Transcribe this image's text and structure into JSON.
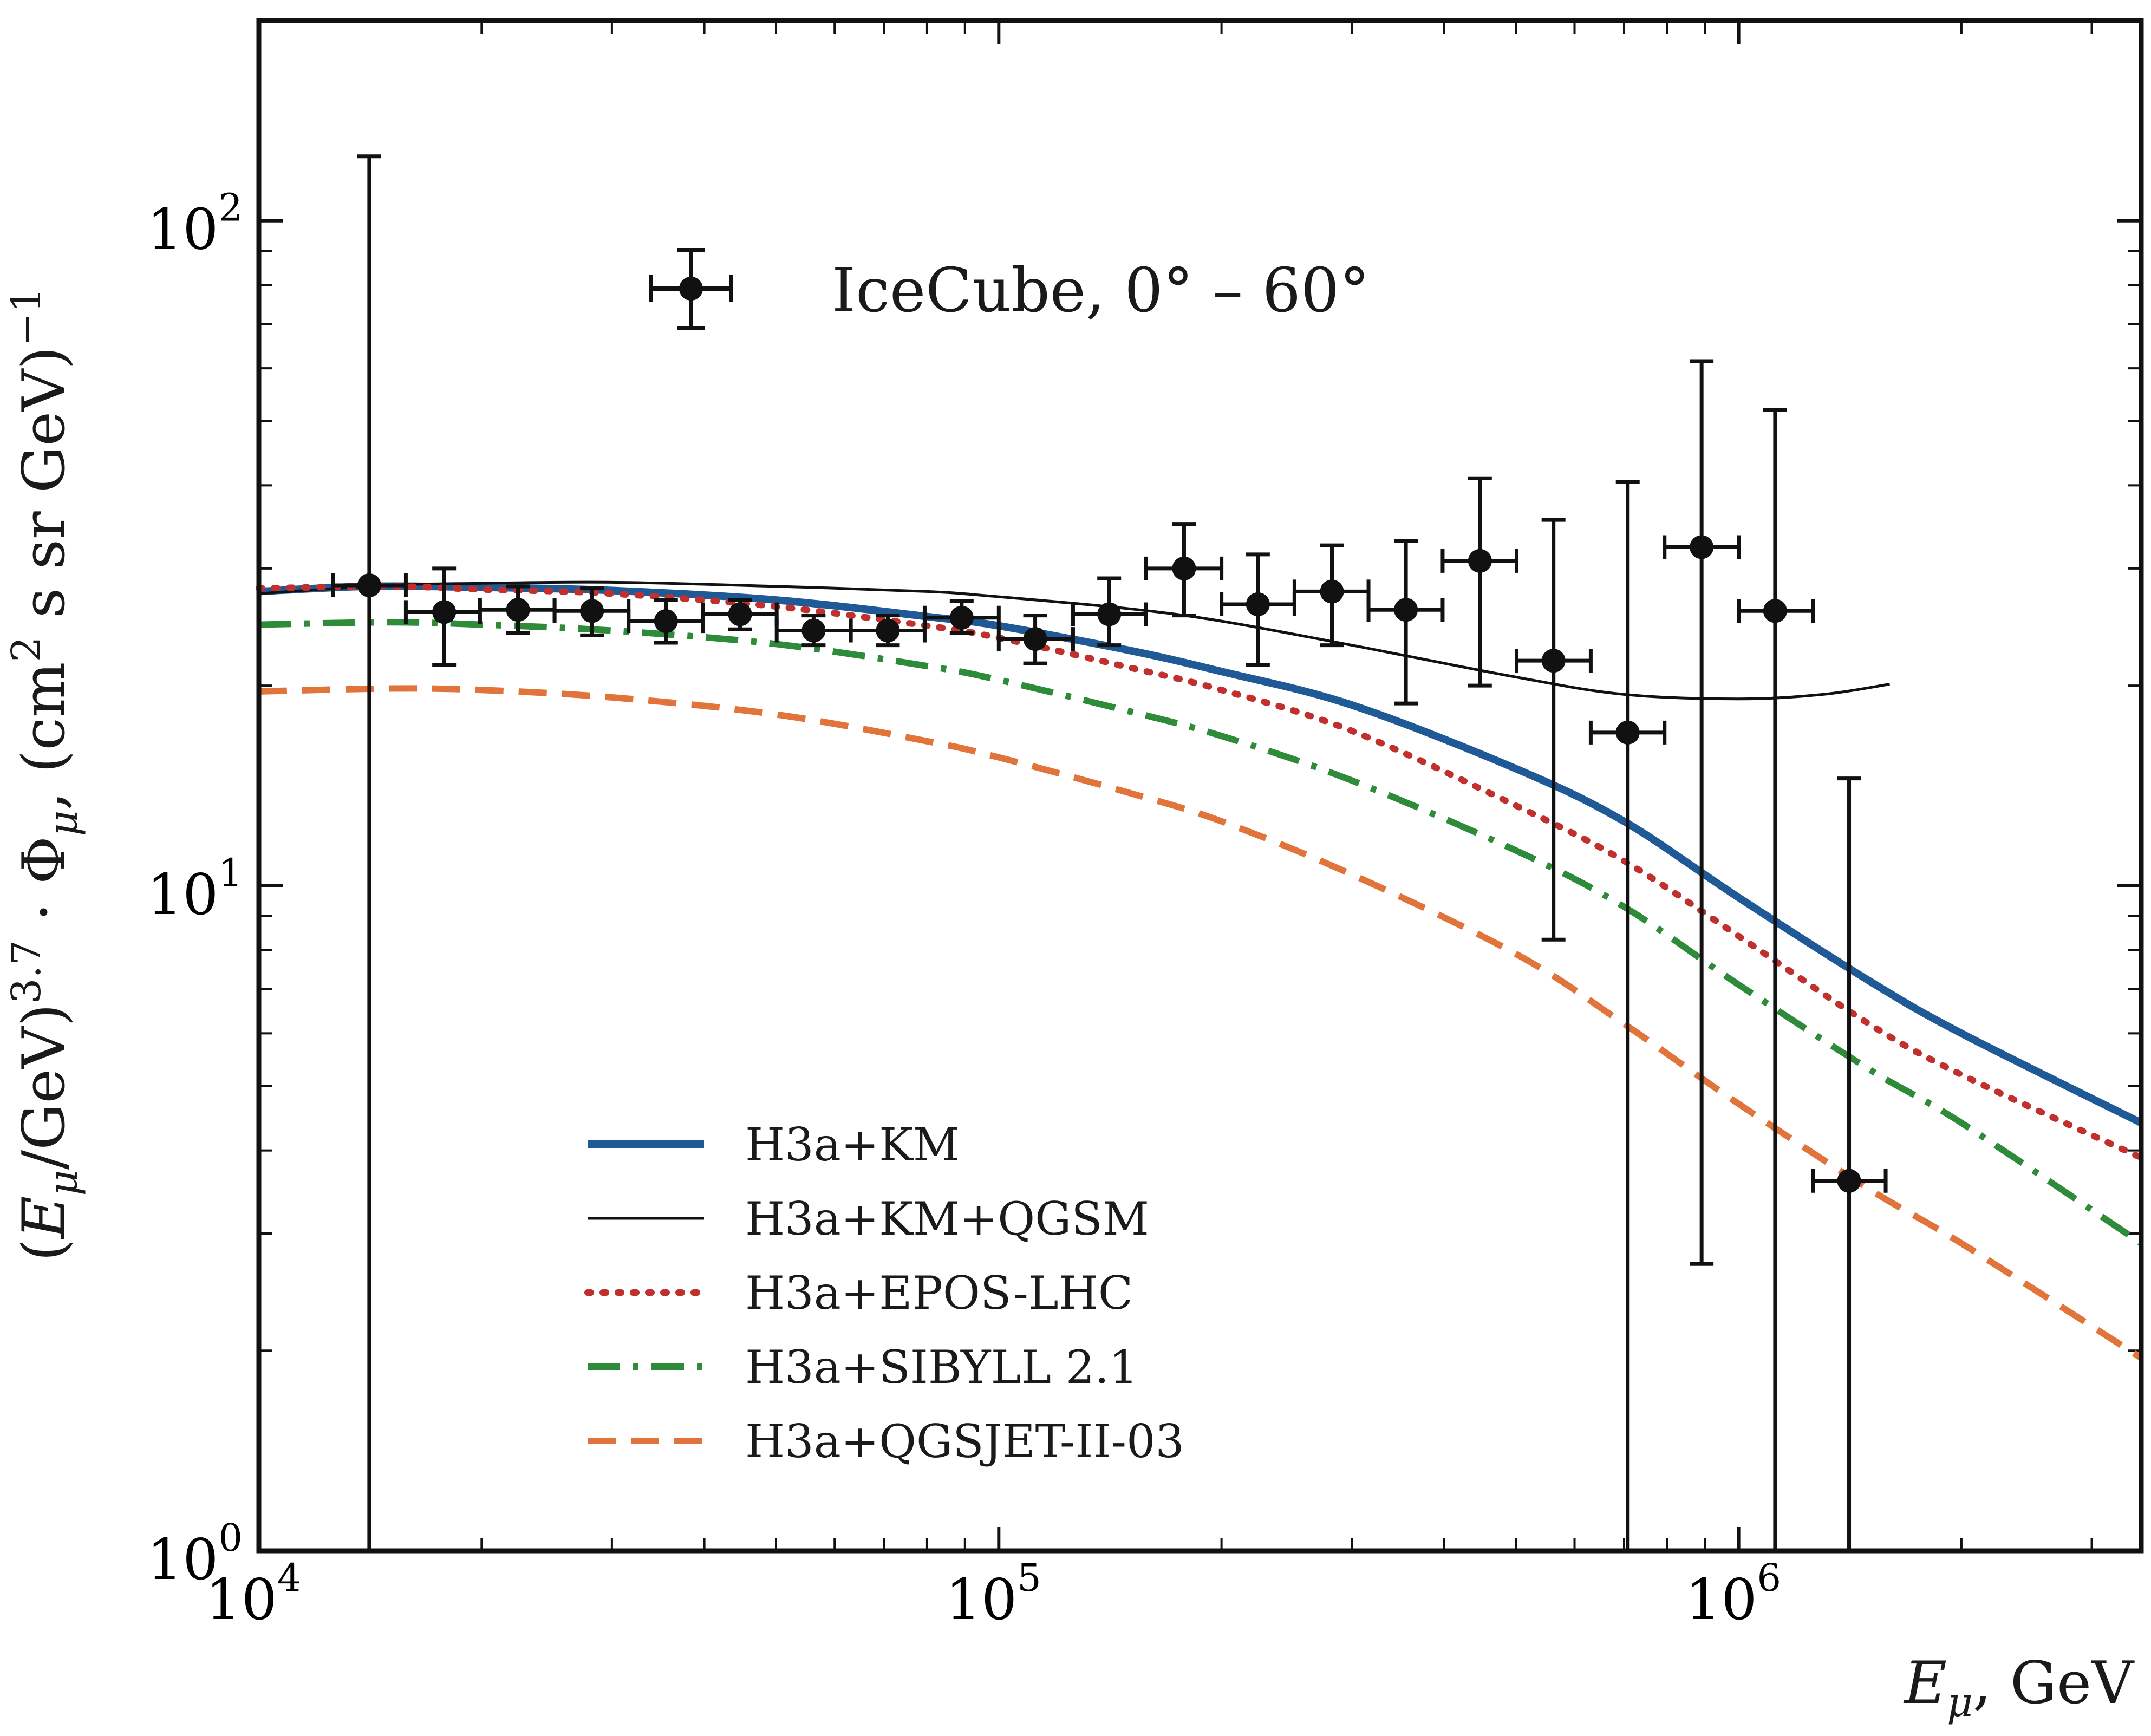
{
  "chart_data": {
    "type": "line",
    "x_scale": "log",
    "y_scale": "log",
    "xlim": [
      10000,
      3500000
    ],
    "ylim": [
      1,
      200
    ],
    "x_ticks": [
      {
        "value": 10000,
        "base": "10",
        "exp": "4"
      },
      {
        "value": 100000,
        "base": "10",
        "exp": "5"
      },
      {
        "value": 1000000,
        "base": "10",
        "exp": "6"
      }
    ],
    "y_ticks": [
      {
        "value": 1,
        "base": "10",
        "exp": "0"
      },
      {
        "value": 10,
        "base": "10",
        "exp": "1"
      },
      {
        "value": 100,
        "base": "10",
        "exp": "2"
      }
    ],
    "xlabel": "E_μ, GeV",
    "ylabel": "(E_μ/GeV)^3.7 · Φ_μ, (cm² s sr GeV)^-1",
    "annotation": "IceCube, 0° – 60°",
    "series": [
      {
        "name": "H3a+KM",
        "color": "#1f5a96",
        "style": "solid",
        "width": 14,
        "points": [
          [
            10000,
            27.7
          ],
          [
            14000,
            28.2
          ],
          [
            20000,
            28.1
          ],
          [
            30000,
            27.8
          ],
          [
            50000,
            26.9
          ],
          [
            80000,
            25.4
          ],
          [
            100000,
            24.6
          ],
          [
            150000,
            22.6
          ],
          [
            200000,
            21.0
          ],
          [
            300000,
            18.7
          ],
          [
            500000,
            15.0
          ],
          [
            700000,
            12.5
          ],
          [
            1000000,
            9.6
          ],
          [
            1500000,
            7.2
          ],
          [
            2000000,
            6.0
          ],
          [
            3500000,
            4.4
          ]
        ]
      },
      {
        "name": "H3a+KM+QGSM",
        "color": "#111111",
        "style": "solid",
        "width": 5,
        "points": [
          [
            10000,
            27.5
          ],
          [
            15000,
            28.3
          ],
          [
            20000,
            28.5
          ],
          [
            30000,
            28.6
          ],
          [
            50000,
            28.2
          ],
          [
            80000,
            27.7
          ],
          [
            100000,
            27.2
          ],
          [
            150000,
            26.1
          ],
          [
            200000,
            25.0
          ],
          [
            300000,
            23.0
          ],
          [
            500000,
            20.6
          ],
          [
            700000,
            19.4
          ],
          [
            1000000,
            19.1
          ],
          [
            1300000,
            19.4
          ],
          [
            1600000,
            20.1
          ]
        ]
      },
      {
        "name": "H3a+EPOS-LHC",
        "color": "#c0302e",
        "style": "dotted",
        "width": 12,
        "points": [
          [
            10000,
            28.0
          ],
          [
            15000,
            28.2
          ],
          [
            20000,
            27.9
          ],
          [
            30000,
            27.5
          ],
          [
            50000,
            26.3
          ],
          [
            80000,
            24.6
          ],
          [
            100000,
            23.6
          ],
          [
            150000,
            21.3
          ],
          [
            200000,
            19.7
          ],
          [
            300000,
            17.1
          ],
          [
            500000,
            13.2
          ],
          [
            700000,
            10.9
          ],
          [
            1000000,
            8.4
          ],
          [
            1500000,
            6.2
          ],
          [
            2000000,
            5.2
          ],
          [
            3500000,
            3.9
          ]
        ]
      },
      {
        "name": "H3a+SIBYLL 2.1",
        "color": "#2e8b3a",
        "style": "dashdot",
        "width": 12,
        "points": [
          [
            10000,
            24.7
          ],
          [
            15000,
            24.9
          ],
          [
            20000,
            24.7
          ],
          [
            30000,
            24.2
          ],
          [
            50000,
            23.1
          ],
          [
            80000,
            21.4
          ],
          [
            100000,
            20.4
          ],
          [
            150000,
            18.3
          ],
          [
            200000,
            16.8
          ],
          [
            300000,
            14.4
          ],
          [
            500000,
            11.3
          ],
          [
            700000,
            9.3
          ],
          [
            1000000,
            7.1
          ],
          [
            1500000,
            5.3
          ],
          [
            2000000,
            4.4
          ],
          [
            3500000,
            2.9
          ]
        ]
      },
      {
        "name": "H3a+QGSJET-II-03",
        "color": "#e0743a",
        "style": "dashed",
        "width": 12,
        "points": [
          [
            10000,
            19.6
          ],
          [
            15000,
            19.8
          ],
          [
            20000,
            19.7
          ],
          [
            30000,
            19.2
          ],
          [
            50000,
            18.1
          ],
          [
            80000,
            16.5
          ],
          [
            100000,
            15.6
          ],
          [
            150000,
            13.8
          ],
          [
            200000,
            12.5
          ],
          [
            300000,
            10.4
          ],
          [
            500000,
            7.9
          ],
          [
            700000,
            6.2
          ],
          [
            1000000,
            4.7
          ],
          [
            1500000,
            3.5
          ],
          [
            2000000,
            2.9
          ],
          [
            3500000,
            1.95
          ]
        ]
      }
    ],
    "data_series": {
      "name": "IceCube, 0° – 60°",
      "color": "#111111",
      "points": [
        {
          "x": 14100,
          "y": 28.3,
          "xlo": 12600,
          "xhi": 15800,
          "ylo": 0.8,
          "yhi": 125
        },
        {
          "x": 17800,
          "y": 25.8,
          "xlo": 15800,
          "xhi": 19900,
          "ylo": 21.5,
          "yhi": 30.0
        },
        {
          "x": 22400,
          "y": 26.0,
          "xlo": 19900,
          "xhi": 25100,
          "ylo": 24.0,
          "yhi": 28.2
        },
        {
          "x": 28200,
          "y": 25.9,
          "xlo": 25100,
          "xhi": 31600,
          "ylo": 23.8,
          "yhi": 28.0
        },
        {
          "x": 35500,
          "y": 25.0,
          "xlo": 31600,
          "xhi": 39800,
          "ylo": 23.2,
          "yhi": 26.9
        },
        {
          "x": 44700,
          "y": 25.6,
          "xlo": 39800,
          "xhi": 50100,
          "ylo": 24.3,
          "yhi": 26.9
        },
        {
          "x": 56200,
          "y": 24.2,
          "xlo": 50100,
          "xhi": 63100,
          "ylo": 23.0,
          "yhi": 25.5
        },
        {
          "x": 70800,
          "y": 24.2,
          "xlo": 63100,
          "xhi": 79400,
          "ylo": 23.0,
          "yhi": 25.5
        },
        {
          "x": 89100,
          "y": 25.3,
          "xlo": 79400,
          "xhi": 100000,
          "ylo": 24.0,
          "yhi": 26.8
        },
        {
          "x": 112000,
          "y": 23.5,
          "xlo": 100000,
          "xhi": 126000,
          "ylo": 21.6,
          "yhi": 25.5
        },
        {
          "x": 141000,
          "y": 25.6,
          "xlo": 126000,
          "xhi": 158000,
          "ylo": 23.0,
          "yhi": 29.0
        },
        {
          "x": 178000,
          "y": 30.0,
          "xlo": 158000,
          "xhi": 200000,
          "ylo": 25.5,
          "yhi": 35.0
        },
        {
          "x": 224000,
          "y": 26.5,
          "xlo": 200000,
          "xhi": 251000,
          "ylo": 21.5,
          "yhi": 31.5
        },
        {
          "x": 282000,
          "y": 27.7,
          "xlo": 251000,
          "xhi": 316000,
          "ylo": 23.0,
          "yhi": 32.5
        },
        {
          "x": 355000,
          "y": 26.0,
          "xlo": 316000,
          "xhi": 398000,
          "ylo": 18.8,
          "yhi": 33.0
        },
        {
          "x": 447000,
          "y": 30.8,
          "xlo": 398000,
          "xhi": 501000,
          "ylo": 20.0,
          "yhi": 41.0
        },
        {
          "x": 562000,
          "y": 21.8,
          "xlo": 501000,
          "xhi": 631000,
          "ylo": 8.3,
          "yhi": 35.5
        },
        {
          "x": 708000,
          "y": 17.0,
          "xlo": 631000,
          "xhi": 794000,
          "ylo": 0.8,
          "yhi": 40.5
        },
        {
          "x": 891000,
          "y": 32.3,
          "xlo": 794000,
          "xhi": 1000000,
          "ylo": 2.7,
          "yhi": 61.5
        },
        {
          "x": 1120000,
          "y": 25.9,
          "xlo": 1000000,
          "xhi": 1260000,
          "ylo": 0.8,
          "yhi": 52.0
        },
        {
          "x": 1410000,
          "y": 3.6,
          "xlo": 1260000,
          "xhi": 1580000,
          "ylo": 0.8,
          "yhi": 14.5
        }
      ]
    }
  }
}
